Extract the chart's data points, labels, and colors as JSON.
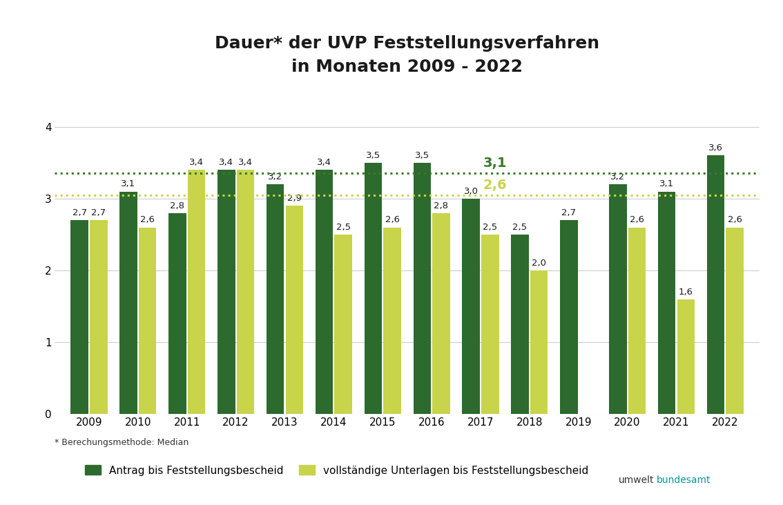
{
  "title": "Dauer* der UVP Feststellungsverfahren\nin Monaten 2009 - 2022",
  "years": [
    2009,
    2010,
    2011,
    2012,
    2013,
    2014,
    2015,
    2016,
    2017,
    2018,
    2019,
    2020,
    2021,
    2022
  ],
  "dark_vals": [
    2.7,
    3.1,
    2.8,
    3.4,
    3.2,
    3.4,
    3.5,
    3.5,
    3.0,
    2.5,
    2.7,
    3.2,
    3.1,
    3.6
  ],
  "light_vals": [
    2.7,
    2.6,
    3.4,
    3.4,
    2.9,
    2.5,
    2.6,
    2.8,
    2.5,
    2.0,
    null,
    2.6,
    1.6,
    2.6
  ],
  "ref_dark": 3.35,
  "ref_light": 3.05,
  "ref_dark_label": "3,1",
  "ref_light_label": "2,6",
  "ref_dark_color": "#3a7a2a",
  "ref_light_color": "#c8d44a",
  "dark_green_color": "#2d6a2d",
  "light_green_color": "#c8d44a",
  "footnote": "* Berechungsmethode: Median",
  "legend_dark": "Antrag bis Feststellungsbescheid",
  "legend_light": "vollständige Unterlagen bis Feststellungsbescheid",
  "ylim": [
    0,
    4.5
  ],
  "yticks": [
    0,
    1,
    2,
    3,
    4
  ],
  "background_color": "#ffffff",
  "grid_color": "#cccccc",
  "bar_width": 0.36,
  "bar_gap": 0.03
}
